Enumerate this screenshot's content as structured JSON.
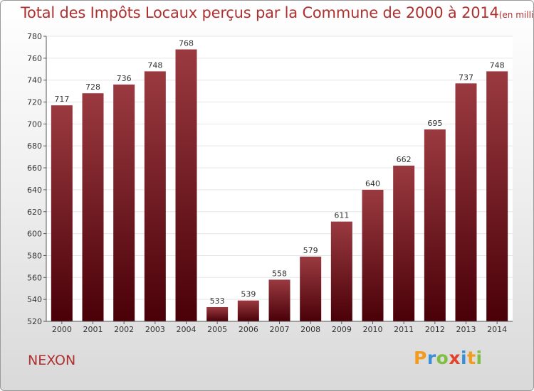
{
  "title": "Total des Impôts Locaux perçus par la Commune de 2000 à 2014",
  "unit": "(en milliers d'€)",
  "commune": "NEXON",
  "logo": {
    "text": "Proxiti",
    "colors": [
      "#f29b1d",
      "#3a8fd4",
      "#7fbf3f",
      "#e2432a",
      "#3a8fd4",
      "#f29b1d",
      "#7fbf3f"
    ]
  },
  "colors": {
    "bar_top": "#9a3a40",
    "bar_bottom": "#4a0008",
    "title": "#b03030",
    "grid": "#e6e6e6"
  },
  "chart_data": {
    "type": "bar",
    "title": "Total des Impôts Locaux perçus par la Commune de 2000 à 2014",
    "xlabel": "",
    "ylabel": "",
    "categories": [
      "2000",
      "2001",
      "2002",
      "2003",
      "2004",
      "2005",
      "2006",
      "2007",
      "2008",
      "2009",
      "2010",
      "2011",
      "2012",
      "2013",
      "2014"
    ],
    "values": [
      717,
      728,
      736,
      748,
      768,
      533,
      539,
      558,
      579,
      611,
      640,
      662,
      695,
      737,
      748
    ],
    "ylim": [
      520,
      780
    ],
    "yticks": [
      520,
      540,
      560,
      580,
      600,
      620,
      640,
      660,
      680,
      700,
      720,
      740,
      760,
      780
    ],
    "grid": true
  }
}
